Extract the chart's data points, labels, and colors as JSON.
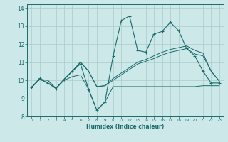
{
  "xlabel": "Humidex (Indice chaleur)",
  "xlim": [
    -0.5,
    23.5
  ],
  "ylim": [
    8,
    14.2
  ],
  "xticks": [
    0,
    1,
    2,
    3,
    4,
    5,
    6,
    7,
    8,
    9,
    10,
    11,
    12,
    13,
    14,
    15,
    16,
    17,
    18,
    19,
    20,
    21,
    22,
    23
  ],
  "yticks": [
    8,
    9,
    10,
    11,
    12,
    13,
    14
  ],
  "bg_color": "#cce8e8",
  "line_color": "#1a6b6b",
  "grid_color": "#aacccc",
  "lines": [
    [
      9.6,
      10.1,
      9.85,
      9.55,
      10.05,
      10.5,
      10.9,
      9.5,
      8.35,
      8.8,
      11.35,
      13.3,
      13.55,
      11.65,
      11.55,
      12.55,
      12.7,
      13.2,
      12.75,
      11.75,
      11.35,
      10.5,
      9.85,
      9.85
    ],
    [
      9.6,
      10.05,
      9.85,
      9.55,
      10.0,
      10.2,
      10.3,
      9.5,
      8.35,
      8.8,
      9.65,
      9.65,
      9.65,
      9.65,
      9.65,
      9.65,
      9.65,
      9.65,
      9.65,
      9.65,
      9.65,
      9.7,
      9.7,
      9.7
    ],
    [
      9.6,
      10.05,
      10.0,
      9.55,
      10.05,
      10.5,
      11.0,
      10.5,
      9.65,
      9.7,
      10.0,
      10.3,
      10.6,
      10.9,
      11.05,
      11.2,
      11.4,
      11.55,
      11.65,
      11.75,
      11.45,
      11.35,
      10.5,
      9.95
    ],
    [
      9.6,
      10.05,
      10.0,
      9.55,
      10.05,
      10.5,
      11.0,
      10.5,
      9.65,
      9.7,
      10.1,
      10.4,
      10.7,
      11.0,
      11.15,
      11.35,
      11.55,
      11.7,
      11.8,
      11.9,
      11.65,
      11.5,
      10.5,
      9.95
    ]
  ]
}
